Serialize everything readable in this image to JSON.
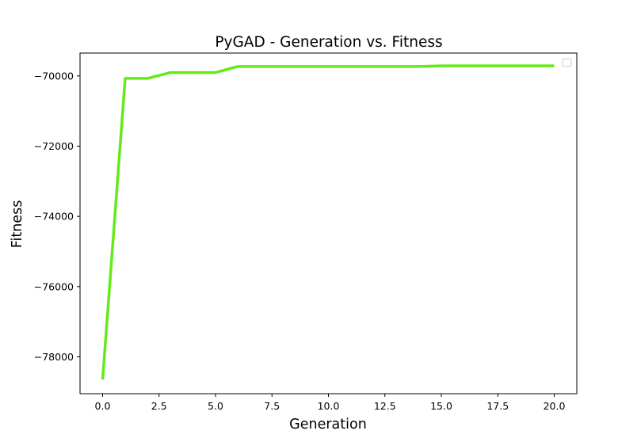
{
  "chart_data": {
    "type": "line",
    "title": "PyGAD - Generation vs. Fitness",
    "xlabel": "Generation",
    "ylabel": "Fitness",
    "xlim": [
      -1,
      21
    ],
    "ylim": [
      -79050,
      -69350
    ],
    "xticks": [
      0.0,
      2.5,
      5.0,
      7.5,
      10.0,
      12.5,
      15.0,
      17.5,
      20.0
    ],
    "xtick_labels": [
      "0.0",
      "2.5",
      "5.0",
      "7.5",
      "10.0",
      "12.5",
      "15.0",
      "17.5",
      "20.0"
    ],
    "yticks": [
      -78000,
      -76000,
      -74000,
      -72000,
      -70000
    ],
    "ytick_labels": [
      "−78000",
      "−76000",
      "−74000",
      "−72000",
      "−70000"
    ],
    "grid": false,
    "legend": {
      "placement": "top-right",
      "entries": []
    },
    "series": [
      {
        "color": "#64eb17",
        "x": [
          0,
          1,
          2,
          3,
          4,
          5,
          6,
          7,
          8,
          9,
          10,
          11,
          12,
          13,
          14,
          15,
          16,
          17,
          18,
          19,
          20
        ],
        "values": [
          -78650,
          -70070,
          -70070,
          -69905,
          -69905,
          -69905,
          -69730,
          -69730,
          -69730,
          -69730,
          -69730,
          -69730,
          -69730,
          -69730,
          -69730,
          -69715,
          -69715,
          -69715,
          -69715,
          -69715,
          -69715
        ]
      }
    ]
  }
}
